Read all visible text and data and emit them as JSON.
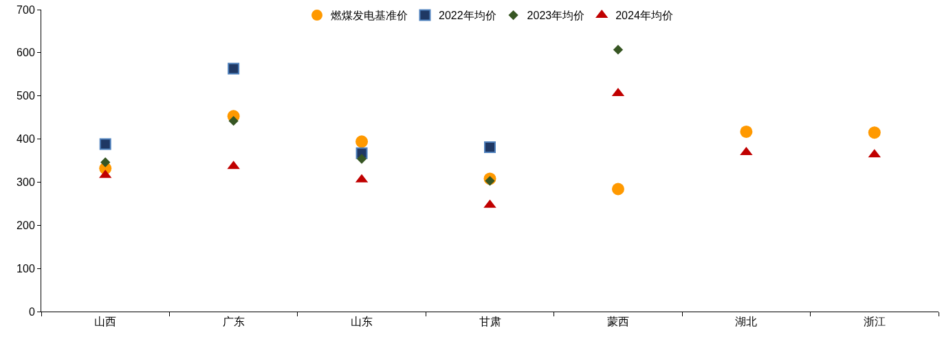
{
  "chart_data": {
    "type": "scatter",
    "categories": [
      "山西",
      "广东",
      "山东",
      "甘肃",
      "蒙西",
      "湖北",
      "浙江"
    ],
    "ylim": [
      0,
      700
    ],
    "yticks": [
      0,
      100,
      200,
      300,
      400,
      500,
      600,
      700
    ],
    "grid": false,
    "legend": "top",
    "series": [
      {
        "name": "燃煤发电基准价",
        "color": "#ff9900",
        "marker": "circle",
        "values": [
          332,
          453,
          394,
          308,
          284,
          417,
          415
        ]
      },
      {
        "name": "2022年均价",
        "color": "#1f3864",
        "marker": "square",
        "values": [
          388,
          563,
          367,
          381,
          null,
          null,
          null
        ]
      },
      {
        "name": "2023年均价",
        "color": "#375623",
        "marker": "diamond",
        "values": [
          346,
          442,
          354,
          303,
          607,
          null,
          null
        ]
      },
      {
        "name": "2024年均价",
        "color": "#c00000",
        "marker": "triangle",
        "values": [
          316,
          337,
          306,
          247,
          506,
          369,
          364
        ]
      }
    ]
  }
}
